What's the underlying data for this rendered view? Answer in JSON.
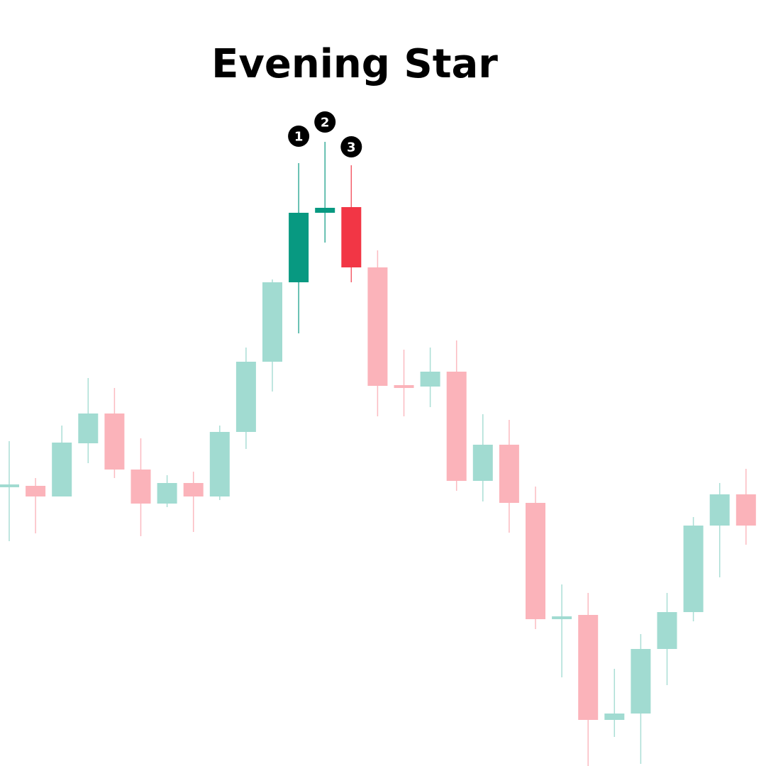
{
  "chart_data": {
    "type": "candlestick",
    "title": "Evening Star",
    "xlabel": "",
    "ylabel": "",
    "grid": false,
    "legend": "none",
    "ylim": [
      0,
      1080
    ],
    "colors": {
      "bull": "#a1dbd1",
      "bear": "#fbb3ba",
      "bull_highlight": "#089981",
      "bear_highlight": "#f23645",
      "marker": "#000000"
    },
    "candles": [
      {
        "open": 395,
        "close": 395,
        "high": 458,
        "low": 317,
        "highlight": false
      },
      {
        "open": 395,
        "close": 380,
        "high": 406,
        "low": 328,
        "highlight": false
      },
      {
        "open": 380,
        "close": 456,
        "high": 480,
        "low": 380,
        "highlight": false
      },
      {
        "open": 455,
        "close": 497,
        "high": 547,
        "low": 427,
        "highlight": false
      },
      {
        "open": 497,
        "close": 418,
        "high": 533,
        "low": 406,
        "highlight": false
      },
      {
        "open": 418,
        "close": 370,
        "high": 462,
        "low": 324,
        "highlight": false
      },
      {
        "open": 370,
        "close": 399,
        "high": 410,
        "low": 365,
        "highlight": false
      },
      {
        "open": 399,
        "close": 380,
        "high": 415,
        "low": 330,
        "highlight": false
      },
      {
        "open": 380,
        "close": 471,
        "high": 480,
        "low": 375,
        "highlight": false
      },
      {
        "open": 471,
        "close": 570,
        "high": 590,
        "low": 447,
        "highlight": false
      },
      {
        "open": 570,
        "close": 682,
        "high": 686,
        "low": 528,
        "highlight": false
      },
      {
        "open": 682,
        "close": 780,
        "high": 850,
        "low": 610,
        "highlight": true,
        "marker": "1"
      },
      {
        "open": 780,
        "close": 787,
        "high": 880,
        "low": 738,
        "highlight": true,
        "marker": "2"
      },
      {
        "open": 788,
        "close": 703,
        "high": 847,
        "low": 682,
        "highlight": true,
        "marker": "3"
      },
      {
        "open": 703,
        "close": 536,
        "high": 727,
        "low": 493,
        "highlight": false
      },
      {
        "open": 536,
        "close": 534,
        "high": 587,
        "low": 493,
        "highlight": false
      },
      {
        "open": 535,
        "close": 556,
        "high": 590,
        "low": 506,
        "highlight": false
      },
      {
        "open": 556,
        "close": 402,
        "high": 600,
        "low": 388,
        "highlight": false
      },
      {
        "open": 402,
        "close": 453,
        "high": 496,
        "low": 373,
        "highlight": false
      },
      {
        "open": 453,
        "close": 371,
        "high": 488,
        "low": 329,
        "highlight": false
      },
      {
        "open": 371,
        "close": 207,
        "high": 394,
        "low": 193,
        "highlight": false
      },
      {
        "open": 207,
        "close": 211,
        "high": 256,
        "low": 125,
        "highlight": false
      },
      {
        "open": 213,
        "close": 65,
        "high": 244,
        "low": 0,
        "highlight": false
      },
      {
        "open": 65,
        "close": 74,
        "high": 137,
        "low": 41,
        "highlight": false
      },
      {
        "open": 74,
        "close": 165,
        "high": 186,
        "low": 3,
        "highlight": false
      },
      {
        "open": 165,
        "close": 217,
        "high": 244,
        "low": 114,
        "highlight": false
      },
      {
        "open": 217,
        "close": 339,
        "high": 351,
        "low": 204,
        "highlight": false
      },
      {
        "open": 339,
        "close": 383,
        "high": 399,
        "low": 266,
        "highlight": false
      },
      {
        "open": 383,
        "close": 339,
        "high": 419,
        "low": 312,
        "highlight": false
      }
    ]
  }
}
